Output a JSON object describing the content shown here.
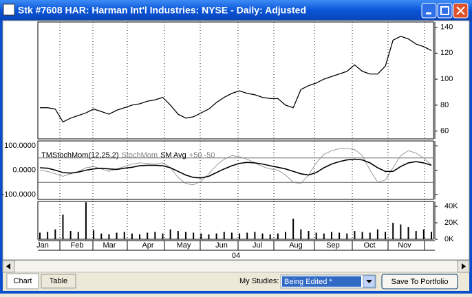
{
  "window": {
    "title": "Stk #7608 HAR: Harman Int'l Industries: NYSE - Daily: Adjusted"
  },
  "chart_data": [
    {
      "type": "line",
      "color": "#000000",
      "values": [
        78,
        78,
        77,
        67,
        70,
        72,
        74,
        77,
        75,
        73,
        76,
        78,
        80,
        81,
        83,
        84,
        86,
        80,
        73,
        70,
        71,
        74,
        77,
        82,
        86,
        89,
        91,
        89,
        88,
        86,
        85,
        85,
        80,
        78,
        92,
        95,
        97,
        100,
        102,
        104,
        106,
        111,
        106,
        104,
        104,
        110,
        130,
        133,
        131,
        127,
        125,
        122
      ],
      "ylim": [
        54,
        144
      ],
      "yticks": [
        60,
        80,
        100,
        120,
        140
      ]
    },
    {
      "type": "line",
      "legend": [
        "TMStochMom(12,25,2)",
        "StochMom",
        "SM Avg",
        "+50 -50"
      ],
      "series": [
        {
          "name": "StochMom",
          "color": "#808080",
          "values": [
            0,
            -5,
            -15,
            -25,
            -15,
            -5,
            10,
            15,
            5,
            -5,
            5,
            15,
            25,
            30,
            28,
            25,
            30,
            10,
            -30,
            -55,
            -60,
            -45,
            -15,
            20,
            45,
            60,
            55,
            45,
            30,
            15,
            5,
            0,
            -20,
            -50,
            -55,
            -20,
            30,
            65,
            80,
            88,
            90,
            85,
            60,
            0,
            -50,
            -40,
            10,
            60,
            80,
            70,
            50,
            20
          ],
          "value_labels": null
        },
        {
          "name": "SM Avg",
          "color": "#000000",
          "values": [
            10,
            8,
            0,
            -10,
            -12,
            -8,
            0,
            5,
            8,
            5,
            3,
            8,
            12,
            18,
            20,
            20,
            18,
            10,
            -5,
            -20,
            -30,
            -32,
            -25,
            -10,
            5,
            18,
            28,
            32,
            30,
            25,
            18,
            12,
            5,
            -5,
            -15,
            -20,
            -10,
            10,
            25,
            35,
            42,
            45,
            42,
            30,
            10,
            -5,
            -5,
            15,
            30,
            35,
            30,
            20
          ]
        }
      ],
      "ref_lines": [
        50,
        -50
      ],
      "ylim": [
        -120,
        120
      ],
      "yticks": [
        {
          "value": 100,
          "label": "100.0000"
        },
        {
          "value": 0,
          "label": "0.0000"
        },
        {
          "value": -100,
          "label": "-100.0000"
        }
      ]
    },
    {
      "type": "bar",
      "color": "#000000",
      "values": [
        8000,
        9000,
        12000,
        30000,
        10000,
        9000,
        45000,
        11000,
        7000,
        6000,
        8000,
        9000,
        7000,
        6000,
        8000,
        9000,
        7000,
        12000,
        10000,
        9000,
        8000,
        7000,
        6000,
        7000,
        9000,
        8000,
        7000,
        8000,
        9000,
        7000,
        6000,
        7000,
        9000,
        25000,
        12000,
        10000,
        8000,
        7000,
        9000,
        8000,
        7000,
        10000,
        9000,
        8000,
        12000,
        9000,
        20000,
        18000,
        15000,
        10000,
        12000,
        9000
      ],
      "ylim": [
        0,
        46000
      ],
      "yticks": [
        {
          "value": 0,
          "label": "0K"
        },
        {
          "value": 20000,
          "label": "20K"
        },
        {
          "value": 40000,
          "label": "40K"
        }
      ]
    }
  ],
  "x_axis": {
    "months": [
      "Jan",
      "Feb",
      "Mar",
      "Apr",
      "May",
      "Jun",
      "Jul",
      "Aug",
      "Sep",
      "Oct",
      "Nov"
    ],
    "year": "04"
  },
  "footer": {
    "tabs": [
      "Chart",
      "Table"
    ],
    "studies_label": "My Studies:",
    "studies_value": "Being Edited *",
    "button": "Save To Portfolio"
  }
}
